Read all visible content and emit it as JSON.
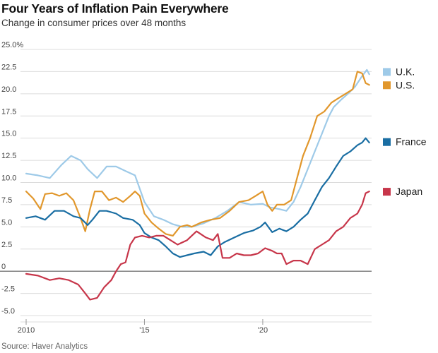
{
  "header": {
    "title": "Four Years of Inflation Pain Everywhere",
    "subtitle": "Change in consumer prices over 48 months"
  },
  "source": "Source: Haver Analytics",
  "chart_data": {
    "type": "line",
    "title": "Four Years of Inflation Pain Everywhere",
    "subtitle": "Change in consumer prices over 48 months",
    "xlabel": "",
    "ylabel": "",
    "x_range": [
      2010.0,
      2024.6
    ],
    "ylim": [
      -5,
      25
    ],
    "grid": true,
    "legend": "right",
    "y_ticks": [
      {
        "value": -5,
        "label": "-5.0"
      },
      {
        "value": -2.5,
        "label": "-2.5"
      },
      {
        "value": 0,
        "label": "0"
      },
      {
        "value": 2.5,
        "label": "2.5"
      },
      {
        "value": 5,
        "label": "5.0"
      },
      {
        "value": 7.5,
        "label": "7.5"
      },
      {
        "value": 10,
        "label": "10.0"
      },
      {
        "value": 12.5,
        "label": "12.5"
      },
      {
        "value": 15,
        "label": "15.0"
      },
      {
        "value": 17.5,
        "label": "17.5"
      },
      {
        "value": 20,
        "label": "20.0"
      },
      {
        "value": 22.5,
        "label": "22.5"
      },
      {
        "value": 25,
        "label": "25.0%"
      }
    ],
    "x_ticks": [
      {
        "value": 2010,
        "label": "2010"
      },
      {
        "value": 2015,
        "label": "'15"
      },
      {
        "value": 2020,
        "label": "'20"
      }
    ],
    "series": [
      {
        "name": "U.K.",
        "color": "#9ecae8",
        "legend_value": 22.5,
        "x": [
          2010.0,
          2010.5,
          2011.0,
          2011.5,
          2011.9,
          2012.3,
          2012.6,
          2013.0,
          2013.4,
          2013.8,
          2014.2,
          2014.6,
          2015.0,
          2015.4,
          2015.8,
          2016.2,
          2016.6,
          2017.0,
          2017.5,
          2018.0,
          2018.5,
          2019.0,
          2019.5,
          2020.0,
          2020.3,
          2020.7,
          2021.0,
          2021.3,
          2021.6,
          2021.9,
          2022.2,
          2022.5,
          2022.8,
          2023.0,
          2023.3,
          2023.6,
          2023.9,
          2024.2,
          2024.4,
          2024.5
        ],
        "y": [
          11.0,
          10.8,
          10.5,
          12.0,
          13.0,
          12.5,
          11.5,
          10.5,
          11.8,
          11.8,
          11.3,
          10.8,
          7.8,
          6.2,
          5.8,
          5.3,
          5.0,
          5.0,
          5.4,
          6.0,
          6.8,
          7.8,
          7.5,
          7.6,
          7.2,
          7.0,
          6.8,
          7.8,
          9.5,
          11.5,
          13.5,
          15.5,
          17.5,
          18.5,
          19.3,
          20.0,
          20.8,
          22.0,
          22.7,
          22.2
        ]
      },
      {
        "name": "U.S.",
        "color": "#e1972c",
        "legend_value": 21.0,
        "x": [
          2010.0,
          2010.3,
          2010.6,
          2010.8,
          2011.1,
          2011.4,
          2011.7,
          2012.0,
          2012.3,
          2012.5,
          2012.7,
          2012.9,
          2013.2,
          2013.5,
          2013.8,
          2014.1,
          2014.4,
          2014.6,
          2014.8,
          2015.0,
          2015.3,
          2015.6,
          2015.9,
          2016.2,
          2016.5,
          2016.8,
          2017.0,
          2017.4,
          2017.8,
          2018.2,
          2018.6,
          2019.0,
          2019.4,
          2019.7,
          2020.0,
          2020.2,
          2020.4,
          2020.6,
          2020.9,
          2021.2,
          2021.4,
          2021.7,
          2022.0,
          2022.3,
          2022.6,
          2022.9,
          2023.2,
          2023.5,
          2023.8,
          2024.0,
          2024.2,
          2024.35,
          2024.5
        ],
        "y": [
          9.0,
          8.2,
          7.0,
          8.7,
          8.8,
          8.5,
          8.8,
          8.0,
          6.0,
          4.5,
          7.0,
          9.0,
          9.0,
          8.0,
          8.3,
          7.8,
          8.5,
          9.0,
          8.5,
          6.5,
          5.5,
          4.8,
          4.2,
          4.0,
          5.0,
          5.2,
          5.0,
          5.5,
          5.8,
          6.0,
          6.8,
          7.8,
          8.0,
          8.5,
          9.0,
          7.5,
          6.8,
          7.5,
          7.5,
          8.0,
          10.0,
          13.0,
          15.0,
          17.5,
          18.0,
          19.0,
          19.5,
          20.0,
          20.5,
          22.5,
          22.3,
          21.2,
          21.0
        ]
      },
      {
        "name": "France",
        "color": "#1a6ea3",
        "legend_value": 14.6,
        "x": [
          2010.0,
          2010.4,
          2010.8,
          2011.2,
          2011.6,
          2012.0,
          2012.3,
          2012.6,
          2012.8,
          2013.1,
          2013.4,
          2013.8,
          2014.1,
          2014.5,
          2014.8,
          2015.0,
          2015.3,
          2015.6,
          2015.9,
          2016.2,
          2016.5,
          2016.8,
          2017.1,
          2017.5,
          2017.8,
          2018.1,
          2018.4,
          2018.8,
          2019.2,
          2019.6,
          2019.9,
          2020.1,
          2020.4,
          2020.7,
          2021.0,
          2021.3,
          2021.6,
          2021.9,
          2022.2,
          2022.5,
          2022.8,
          2023.1,
          2023.4,
          2023.7,
          2024.0,
          2024.2,
          2024.35,
          2024.5
        ],
        "y": [
          6.0,
          6.2,
          5.8,
          6.8,
          6.8,
          6.2,
          6.0,
          5.2,
          5.8,
          6.8,
          6.8,
          6.5,
          6.0,
          5.8,
          5.2,
          4.3,
          3.8,
          3.5,
          2.8,
          2.0,
          1.6,
          1.8,
          2.0,
          2.2,
          1.8,
          2.8,
          3.3,
          3.8,
          4.3,
          4.6,
          5.0,
          5.5,
          4.4,
          4.8,
          4.5,
          5.0,
          5.8,
          6.5,
          8.0,
          9.5,
          10.5,
          11.8,
          13.0,
          13.5,
          14.2,
          14.5,
          15.0,
          14.5
        ]
      },
      {
        "name": "Japan",
        "color": "#c7364a",
        "legend_value": 9.0,
        "x": [
          2010.0,
          2010.5,
          2011.0,
          2011.4,
          2011.8,
          2012.2,
          2012.5,
          2012.7,
          2013.0,
          2013.3,
          2013.6,
          2013.8,
          2014.0,
          2014.2,
          2014.4,
          2014.6,
          2014.9,
          2015.2,
          2015.5,
          2015.8,
          2016.1,
          2016.4,
          2016.8,
          2017.2,
          2017.6,
          2017.9,
          2018.1,
          2018.3,
          2018.6,
          2018.9,
          2019.2,
          2019.5,
          2019.8,
          2020.1,
          2020.4,
          2020.6,
          2020.8,
          2021.0,
          2021.3,
          2021.6,
          2021.9,
          2022.2,
          2022.5,
          2022.8,
          2023.1,
          2023.4,
          2023.7,
          2024.0,
          2024.2,
          2024.35,
          2024.5
        ],
        "y": [
          -0.3,
          -0.5,
          -1.0,
          -0.8,
          -1.0,
          -1.5,
          -2.5,
          -3.2,
          -3.0,
          -1.8,
          -1.0,
          0.0,
          0.8,
          1.0,
          3.0,
          3.8,
          4.0,
          3.8,
          4.0,
          4.0,
          3.5,
          3.0,
          3.5,
          4.5,
          3.8,
          3.5,
          4.2,
          1.5,
          1.5,
          2.0,
          1.8,
          1.8,
          2.0,
          2.6,
          2.3,
          2.0,
          2.0,
          0.8,
          1.2,
          1.2,
          0.8,
          2.5,
          3.0,
          3.5,
          4.5,
          5.0,
          6.0,
          6.5,
          7.5,
          8.8,
          9.0
        ]
      }
    ]
  }
}
